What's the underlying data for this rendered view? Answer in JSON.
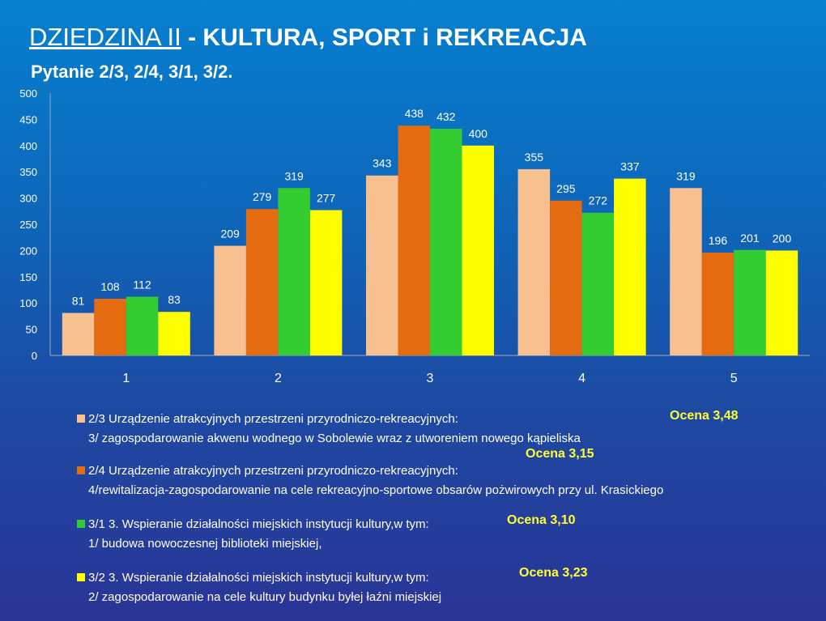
{
  "title_main": "DZIEDZINA II",
  "title_rest": " - KULTURA, SPORT i REKREACJA",
  "subtitle": "Pytanie  2/3, 2/4, 3/1, 3/2.",
  "chart_data": {
    "type": "bar",
    "categories": [
      "1",
      "2",
      "3",
      "4",
      "5"
    ],
    "ylim": [
      0,
      500
    ],
    "yticks": [
      0,
      50,
      100,
      150,
      200,
      250,
      300,
      350,
      400,
      450,
      500
    ],
    "series": [
      {
        "name": "2/3",
        "color": "#f8c090",
        "values": [
          81,
          209,
          343,
          355,
          319
        ]
      },
      {
        "name": "2/4",
        "color": "#e56b10",
        "values": [
          108,
          279,
          438,
          295,
          196
        ]
      },
      {
        "name": "3/1",
        "color": "#33cc33",
        "values": [
          112,
          319,
          432,
          272,
          201
        ]
      },
      {
        "name": "3/2",
        "color": "#ffff00",
        "values": [
          83,
          277,
          400,
          337,
          200
        ]
      }
    ]
  },
  "legend": [
    {
      "line1": "2/3 Urządzenie atrakcyjnych przestrzeni przyrodniczo-rekreacyjnych:",
      "line2": "3/ zagospodarowanie akwenu wodnego w Sobolewie wraz z utworeniem nowego kąpieliska",
      "ocena": "Ocena 3,48",
      "color": "#f8c090"
    },
    {
      "line1": "2/4 Urządzenie atrakcyjnych przestrzeni przyrodniczo-rekreacyjnych:",
      "line2": "4/rewitalizacja-zagospodarowanie na cele rekreacyjno-sportowe obsarów pożwirowych przy ul. Krasickiego",
      "ocena": "Ocena 3,15",
      "color": "#e56b10"
    },
    {
      "line1": "3/1 3. Wspieranie działalności miejskich instytucji kultury,w tym:",
      "line2": "1/ budowa nowoczesnej biblioteki  miejskiej,",
      "ocena": "Ocena 3,10",
      "color": "#33cc33"
    },
    {
      "line1": "3/2 3. Wspieranie działalności miejskich instytucji kultury,w tym:",
      "line2": "2/ zagospodarowanie na cele kultury budynku byłej łaźni miejskiej",
      "ocena": "Ocena 3,23",
      "color": "#ffff00"
    }
  ]
}
